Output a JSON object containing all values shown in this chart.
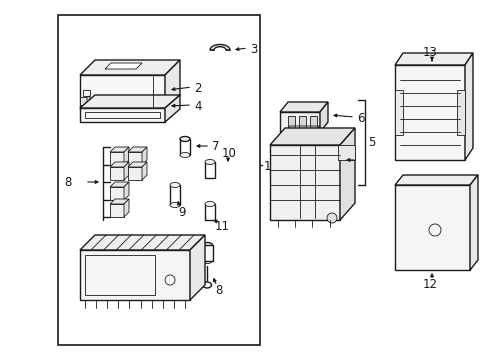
{
  "bg": "#f0f0f0",
  "fg": "#1a1a1a",
  "box_bg": "#ffffff",
  "border": [
    0.095,
    0.035,
    0.555,
    0.955
  ],
  "fig_w": 4.89,
  "fig_h": 3.6,
  "dpi": 100,
  "lw_main": 1.0,
  "lw_thin": 0.6,
  "lw_border": 1.2,
  "fs_label": 8.5,
  "fs_num": 9.0
}
